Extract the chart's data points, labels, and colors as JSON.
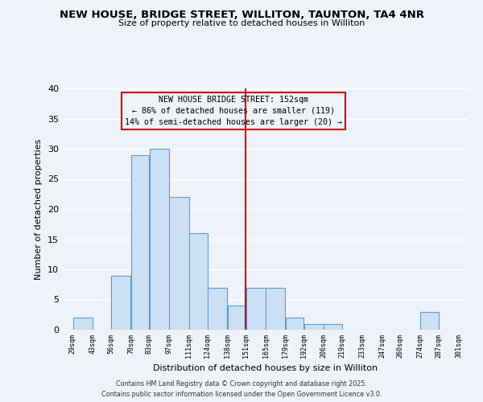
{
  "title": "NEW HOUSE, BRIDGE STREET, WILLITON, TAUNTON, TA4 4NR",
  "subtitle": "Size of property relative to detached houses in Williton",
  "xlabel": "Distribution of detached houses by size in Williton",
  "ylabel": "Number of detached properties",
  "bin_edges": [
    29,
    43,
    56,
    70,
    83,
    97,
    111,
    124,
    138,
    151,
    165,
    179,
    192,
    206,
    219,
    233,
    247,
    260,
    274,
    287,
    301
  ],
  "bin_counts": [
    2,
    0,
    9,
    29,
    30,
    22,
    16,
    7,
    4,
    7,
    7,
    2,
    1,
    1,
    0,
    0,
    0,
    0,
    3,
    0
  ],
  "bar_facecolor": "#cce0f5",
  "bar_edgecolor": "#5b9bd5",
  "vline_x": 151,
  "vline_color": "#cc0000",
  "annotation_title": "NEW HOUSE BRIDGE STREET: 152sqm",
  "annotation_line1": "← 86% of detached houses are smaller (119)",
  "annotation_line2": "14% of semi-detached houses are larger (20) →",
  "annotation_box_edgecolor": "#cc0000",
  "tick_labels": [
    "29sqm",
    "43sqm",
    "56sqm",
    "70sqm",
    "83sqm",
    "97sqm",
    "111sqm",
    "124sqm",
    "138sqm",
    "151sqm",
    "165sqm",
    "179sqm",
    "192sqm",
    "206sqm",
    "219sqm",
    "233sqm",
    "247sqm",
    "260sqm",
    "274sqm",
    "287sqm",
    "301sqm"
  ],
  "ylim": [
    0,
    40
  ],
  "yticks": [
    0,
    5,
    10,
    15,
    20,
    25,
    30,
    35,
    40
  ],
  "footnote1": "Contains HM Land Registry data © Crown copyright and database right 2025.",
  "footnote2": "Contains public sector information licensed under the Open Government Licence v3.0.",
  "background_color": "#eef2f9",
  "grid_color": "#ffffff"
}
